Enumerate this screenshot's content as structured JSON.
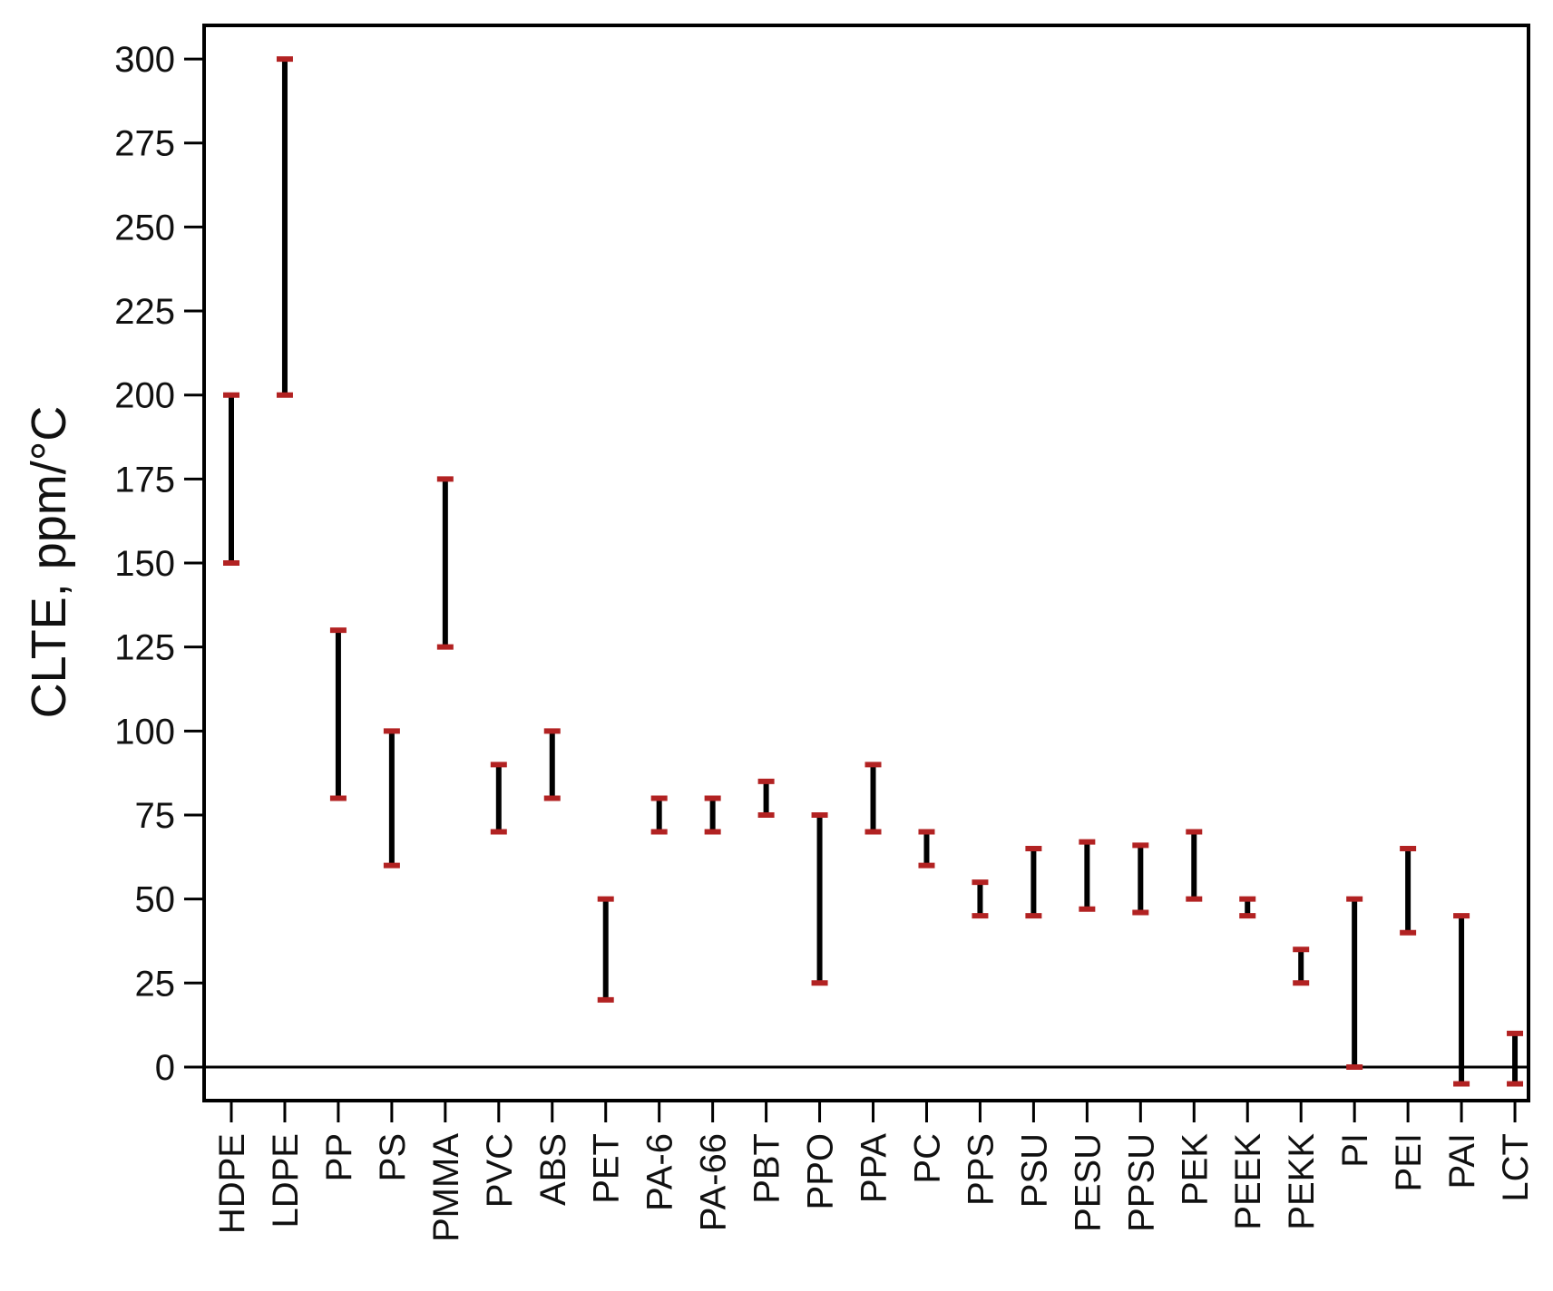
{
  "chart_data": {
    "type": "range",
    "ylabel": "CLTE, ppm/°C",
    "ylim": [
      -10,
      310
    ],
    "yticks": [
      0,
      25,
      50,
      75,
      100,
      125,
      150,
      175,
      200,
      225,
      250,
      275,
      300
    ],
    "zero_line": true,
    "grid": false,
    "categories": [
      "HDPE",
      "LDPE",
      "PP",
      "PS",
      "PMMA",
      "PVC",
      "ABS",
      "PET",
      "PA-6",
      "PA-66",
      "PBT",
      "PPO",
      "PPA",
      "PC",
      "PPS",
      "PSU",
      "PESU",
      "PPSU",
      "PEK",
      "PEEK",
      "PEKK",
      "PI",
      "PEI",
      "PAI",
      "LCT"
    ],
    "ranges": [
      [
        150,
        200
      ],
      [
        200,
        300
      ],
      [
        80,
        130
      ],
      [
        60,
        100
      ],
      [
        125,
        175
      ],
      [
        70,
        90
      ],
      [
        80,
        100
      ],
      [
        20,
        50
      ],
      [
        70,
        80
      ],
      [
        70,
        80
      ],
      [
        75,
        85
      ],
      [
        25,
        75
      ],
      [
        70,
        90
      ],
      [
        60,
        70
      ],
      [
        45,
        55
      ],
      [
        45,
        65
      ],
      [
        47,
        67
      ],
      [
        46,
        66
      ],
      [
        50,
        70
      ],
      [
        45,
        50
      ],
      [
        25,
        35
      ],
      [
        0,
        50
      ],
      [
        40,
        65
      ],
      [
        -5,
        45
      ],
      [
        -5,
        10
      ]
    ],
    "colors": {
      "bar": "#000000",
      "cap": "#b22222",
      "axis": "#000000"
    }
  }
}
